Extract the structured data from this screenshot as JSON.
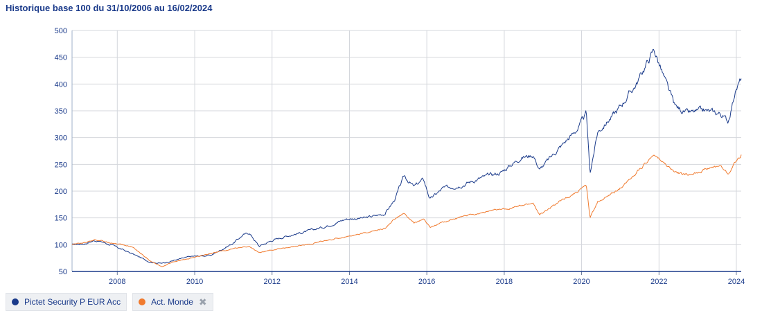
{
  "title": "Historique base 100 du 31/10/2006 au 16/02/2024",
  "chart_data": {
    "type": "line",
    "title": "Historique base 100 du 31/10/2006 au 16/02/2024",
    "xlim": [
      "2006-10-31",
      "2024-02-16"
    ],
    "ylim": [
      50,
      500
    ],
    "yticks": [
      50,
      100,
      150,
      200,
      250,
      300,
      350,
      400,
      450,
      500
    ],
    "xticks": [
      "2008",
      "2010",
      "2012",
      "2014",
      "2016",
      "2018",
      "2020",
      "2022",
      "2024"
    ],
    "grid": true,
    "legend_position": "bottom-left",
    "series": [
      {
        "name": "Pictet Security P EUR Acc",
        "color": "#1a3a8a",
        "points": [
          [
            "2006-10-31",
            100
          ],
          [
            "2007-03-01",
            102
          ],
          [
            "2007-06-01",
            108
          ],
          [
            "2007-09-01",
            104
          ],
          [
            "2008-01-01",
            95
          ],
          [
            "2008-06-01",
            82
          ],
          [
            "2008-11-01",
            68
          ],
          [
            "2009-03-01",
            65
          ],
          [
            "2009-06-01",
            70
          ],
          [
            "2009-12-01",
            78
          ],
          [
            "2010-06-01",
            80
          ],
          [
            "2011-01-01",
            103
          ],
          [
            "2011-04-01",
            118
          ],
          [
            "2011-06-01",
            122
          ],
          [
            "2011-09-01",
            97
          ],
          [
            "2012-01-01",
            108
          ],
          [
            "2012-06-01",
            117
          ],
          [
            "2012-12-01",
            125
          ],
          [
            "2013-06-01",
            135
          ],
          [
            "2013-12-01",
            148
          ],
          [
            "2014-06-01",
            150
          ],
          [
            "2014-12-01",
            158
          ],
          [
            "2015-03-01",
            183
          ],
          [
            "2015-06-01",
            228
          ],
          [
            "2015-09-01",
            208
          ],
          [
            "2015-12-01",
            222
          ],
          [
            "2016-02-01",
            185
          ],
          [
            "2016-06-01",
            205
          ],
          [
            "2016-12-01",
            212
          ],
          [
            "2017-06-01",
            225
          ],
          [
            "2017-12-01",
            235
          ],
          [
            "2018-06-01",
            262
          ],
          [
            "2018-10-01",
            268
          ],
          [
            "2018-12-01",
            240
          ],
          [
            "2019-06-01",
            280
          ],
          [
            "2019-12-01",
            318
          ],
          [
            "2020-02-15",
            345
          ],
          [
            "2020-03-20",
            233
          ],
          [
            "2020-06-01",
            310
          ],
          [
            "2020-12-01",
            350
          ],
          [
            "2021-06-01",
            400
          ],
          [
            "2021-11-15",
            465
          ],
          [
            "2022-03-01",
            405
          ],
          [
            "2022-06-01",
            358
          ],
          [
            "2022-10-01",
            345
          ],
          [
            "2023-03-01",
            350
          ],
          [
            "2023-08-01",
            345
          ],
          [
            "2023-10-15",
            330
          ],
          [
            "2023-12-15",
            382
          ],
          [
            "2024-02-16",
            410
          ]
        ]
      },
      {
        "name": "Act. Monde",
        "color": "#f07a2e",
        "points": [
          [
            "2006-10-31",
            100
          ],
          [
            "2007-03-01",
            104
          ],
          [
            "2007-06-01",
            110
          ],
          [
            "2007-09-01",
            106
          ],
          [
            "2008-01-01",
            102
          ],
          [
            "2008-06-01",
            95
          ],
          [
            "2008-11-01",
            70
          ],
          [
            "2009-03-01",
            58
          ],
          [
            "2009-06-01",
            67
          ],
          [
            "2009-12-01",
            75
          ],
          [
            "2010-06-01",
            84
          ],
          [
            "2011-01-01",
            92
          ],
          [
            "2011-04-01",
            96
          ],
          [
            "2011-06-01",
            97
          ],
          [
            "2011-09-01",
            85
          ],
          [
            "2012-01-01",
            90
          ],
          [
            "2012-06-01",
            95
          ],
          [
            "2012-12-01",
            100
          ],
          [
            "2013-06-01",
            108
          ],
          [
            "2013-12-01",
            115
          ],
          [
            "2014-06-01",
            122
          ],
          [
            "2014-12-01",
            130
          ],
          [
            "2015-03-01",
            148
          ],
          [
            "2015-06-01",
            158
          ],
          [
            "2015-09-01",
            140
          ],
          [
            "2015-12-01",
            148
          ],
          [
            "2016-02-01",
            132
          ],
          [
            "2016-06-01",
            142
          ],
          [
            "2016-12-01",
            152
          ],
          [
            "2017-06-01",
            160
          ],
          [
            "2017-12-01",
            166
          ],
          [
            "2018-06-01",
            172
          ],
          [
            "2018-10-01",
            178
          ],
          [
            "2018-12-01",
            155
          ],
          [
            "2019-06-01",
            180
          ],
          [
            "2019-12-01",
            200
          ],
          [
            "2020-02-15",
            212
          ],
          [
            "2020-03-20",
            150
          ],
          [
            "2020-06-01",
            180
          ],
          [
            "2020-12-01",
            200
          ],
          [
            "2021-06-01",
            235
          ],
          [
            "2021-11-15",
            268
          ],
          [
            "2022-03-01",
            250
          ],
          [
            "2022-06-01",
            235
          ],
          [
            "2022-10-01",
            230
          ],
          [
            "2023-03-01",
            240
          ],
          [
            "2023-08-01",
            248
          ],
          [
            "2023-10-15",
            232
          ],
          [
            "2023-12-15",
            252
          ],
          [
            "2024-02-16",
            268
          ]
        ]
      }
    ]
  },
  "legend": {
    "items": [
      {
        "label": "Pictet Security P EUR Acc",
        "color": "#1a3a8a"
      },
      {
        "label": "Act. Monde",
        "color": "#f07a2e"
      }
    ]
  }
}
